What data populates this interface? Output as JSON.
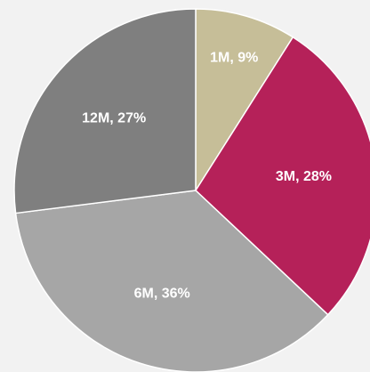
{
  "chart_data": {
    "type": "pie",
    "categories": [
      "1M",
      "3M",
      "6M",
      "12M"
    ],
    "values": [
      9,
      28,
      36,
      27
    ],
    "value_labels": [
      "1M, 9%",
      "3M, 28%",
      "6M, 36%",
      "12M, 27%"
    ],
    "colors": [
      "#c6be98",
      "#b52159",
      "#a6a6a6",
      "#7f7f7f"
    ]
  }
}
